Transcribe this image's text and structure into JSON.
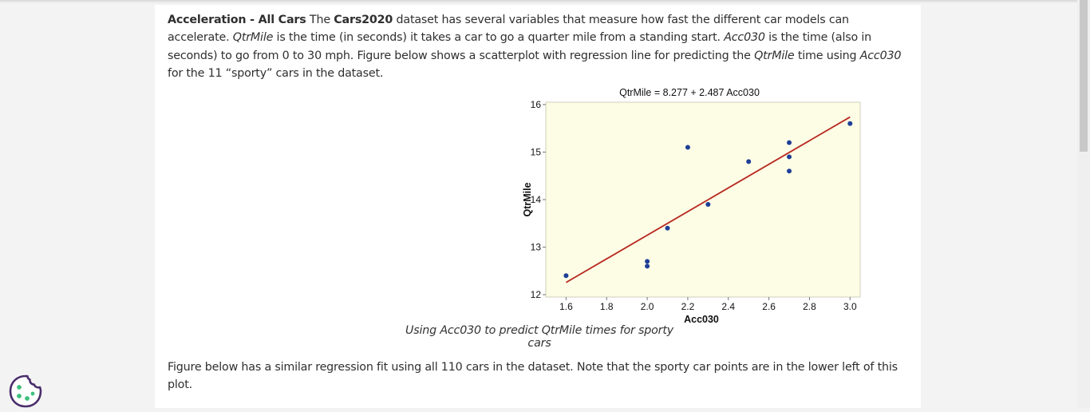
{
  "intro": {
    "heading_plain": "Acceleration - All Cars",
    "text_1": " The ",
    "dataset_name": "Cars2020",
    "text_2": " dataset has several variables that measure how fast the different car models can accelerate. ",
    "var_qtrmile": "QtrMile",
    "text_3": " is the time (in seconds) it takes a car to go a quarter mile from a standing start. ",
    "var_acc030": "Acc030",
    "text_4": " is the time (also in seconds) to go from 0 to 30 mph. Figure below shows a scatterplot with regression line for predicting the ",
    "var_qtrmile_2": "QtrMile",
    "text_5": " time using ",
    "var_acc030_2": "Acc030",
    "text_6": " for the 11 “sporty” cars in the dataset."
  },
  "caption": "Using Acc030 to predict QtrMile times for sporty cars",
  "followup": "Figure below has a similar regression fit using all 110 cars in the dataset. Note that the sporty car points are in the lower left of this plot.",
  "chart_data": {
    "type": "scatter",
    "title": "QtrMile = 8.277 + 2.487 Acc030",
    "xlabel": "Acc030",
    "ylabel": "QtrMile",
    "xlim": [
      1.5,
      3.05
    ],
    "ylim": [
      11.95,
      16.05
    ],
    "xticks": [
      1.6,
      1.8,
      2.0,
      2.2,
      2.4,
      2.6,
      2.8,
      3.0
    ],
    "xtick_labels": [
      "1.6",
      "1.8",
      "2.0",
      "2.2",
      "2.4",
      "2.6",
      "2.8",
      "3.0"
    ],
    "yticks": [
      12,
      13,
      14,
      15,
      16
    ],
    "ytick_labels": [
      "12",
      "13",
      "14",
      "15",
      "16"
    ],
    "points": [
      {
        "x": 1.6,
        "y": 12.4
      },
      {
        "x": 2.0,
        "y": 12.6
      },
      {
        "x": 2.0,
        "y": 12.7
      },
      {
        "x": 2.1,
        "y": 13.4
      },
      {
        "x": 2.2,
        "y": 15.1
      },
      {
        "x": 2.3,
        "y": 13.9
      },
      {
        "x": 2.5,
        "y": 14.8
      },
      {
        "x": 2.7,
        "y": 14.6
      },
      {
        "x": 2.7,
        "y": 14.9
      },
      {
        "x": 2.7,
        "y": 15.2
      },
      {
        "x": 3.0,
        "y": 15.6
      }
    ],
    "regression": {
      "intercept": 8.277,
      "slope": 2.487,
      "x_from": 1.6,
      "x_to": 3.0
    },
    "colors": {
      "plot_background": "#fdfde6",
      "points": "#1f3f97",
      "regression_line": "#b8281f"
    },
    "grid": false,
    "legend": "none"
  }
}
